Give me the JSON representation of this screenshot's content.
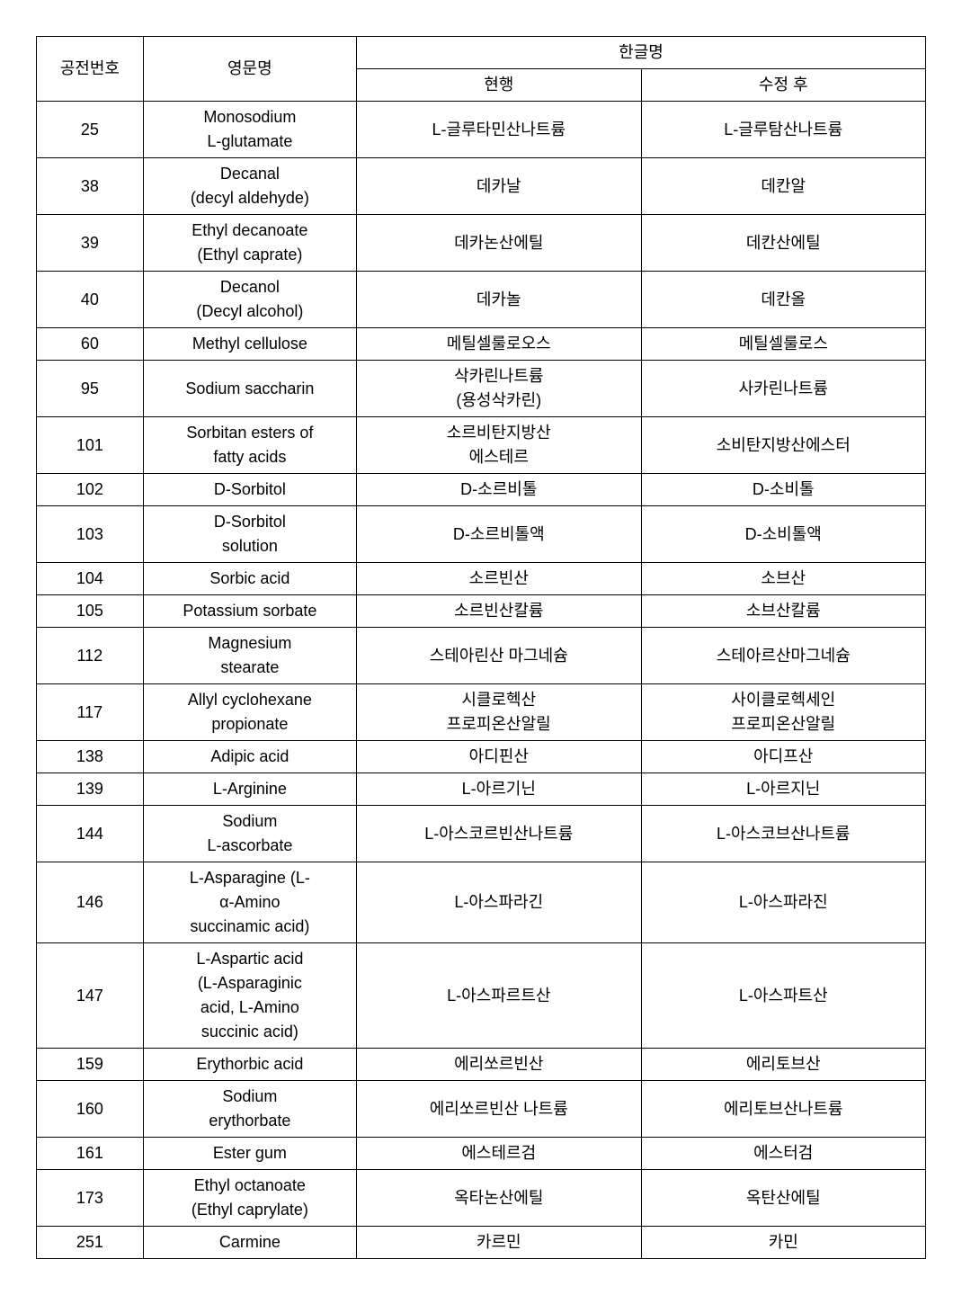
{
  "headers": {
    "col1": "공전번호",
    "col2": "영문명",
    "col3_group": "한글명",
    "col3a": "현행",
    "col3b": "수정 후"
  },
  "rows": [
    {
      "num": "25",
      "eng": "Monosodium\nL-glutamate",
      "current": "L-글루타민산나트륨",
      "revised": "L-글루탐산나트륨"
    },
    {
      "num": "38",
      "eng": "Decanal\n(decyl aldehyde)",
      "current": "데카날",
      "revised": "데칸알"
    },
    {
      "num": "39",
      "eng": "Ethyl decanoate\n(Ethyl caprate)",
      "current": "데카논산에틸",
      "revised": "데칸산에틸"
    },
    {
      "num": "40",
      "eng": "Decanol\n(Decyl alcohol)",
      "current": "데카놀",
      "revised": "데칸올"
    },
    {
      "num": "60",
      "eng": "Methyl cellulose",
      "current": "메틸셀룰로오스",
      "revised": "메틸셀룰로스"
    },
    {
      "num": "95",
      "eng": "Sodium saccharin",
      "current": "삭카린나트륨\n(용성삭카린)",
      "revised": "사카린나트륨"
    },
    {
      "num": "101",
      "eng": "Sorbitan esters of\nfatty acids",
      "current": "소르비탄지방산\n에스테르",
      "revised": "소비탄지방산에스터"
    },
    {
      "num": "102",
      "eng": "D-Sorbitol",
      "current": "D-소르비톨",
      "revised": "D-소비톨"
    },
    {
      "num": "103",
      "eng": "D-Sorbitol\nsolution",
      "current": "D-소르비톨액",
      "revised": "D-소비톨액"
    },
    {
      "num": "104",
      "eng": "Sorbic acid",
      "current": "소르빈산",
      "revised": "소브산"
    },
    {
      "num": "105",
      "eng": "Potassium sorbate",
      "current": "소르빈산칼륨",
      "revised": "소브산칼륨"
    },
    {
      "num": "112",
      "eng": "Magnesium\nstearate",
      "current": "스테아린산 마그네슘",
      "revised": "스테아르산마그네슘"
    },
    {
      "num": "117",
      "eng": "Allyl cyclohexane\npropionate",
      "current": "시클로헥산\n프로피온산알릴",
      "revised": "사이클로헥세인\n프로피온산알릴"
    },
    {
      "num": "138",
      "eng": "Adipic acid",
      "current": "아디핀산",
      "revised": "아디프산"
    },
    {
      "num": "139",
      "eng": "L-Arginine",
      "current": "L-아르기닌",
      "revised": "L-아르지닌"
    },
    {
      "num": "144",
      "eng": "Sodium\nL-ascorbate",
      "current": "L-아스코르빈산나트륨",
      "revised": "L-아스코브산나트륨"
    },
    {
      "num": "146",
      "eng": "L-Asparagine (L-\nα-Amino\nsuccinamic acid)",
      "current": "L-아스파라긴",
      "revised": "L-아스파라진"
    },
    {
      "num": "147",
      "eng": "L-Aspartic acid\n(L-Asparaginic\nacid, L-Amino\nsuccinic acid)",
      "current": "L-아스파르트산",
      "revised": "L-아스파트산"
    },
    {
      "num": "159",
      "eng": "Erythorbic acid",
      "current": "에리쏘르빈산",
      "revised": "에리토브산"
    },
    {
      "num": "160",
      "eng": "Sodium\nerythorbate",
      "current": "에리쏘르빈산 나트륨",
      "revised": "에리토브산나트륨"
    },
    {
      "num": "161",
      "eng": "Ester gum",
      "current": "에스테르검",
      "revised": "에스터검"
    },
    {
      "num": "173",
      "eng": "Ethyl octanoate\n(Ethyl caprylate)",
      "current": "옥타논산에틸",
      "revised": "옥탄산에틸"
    },
    {
      "num": "251",
      "eng": "Carmine",
      "current": "카르민",
      "revised": "카민"
    }
  ]
}
